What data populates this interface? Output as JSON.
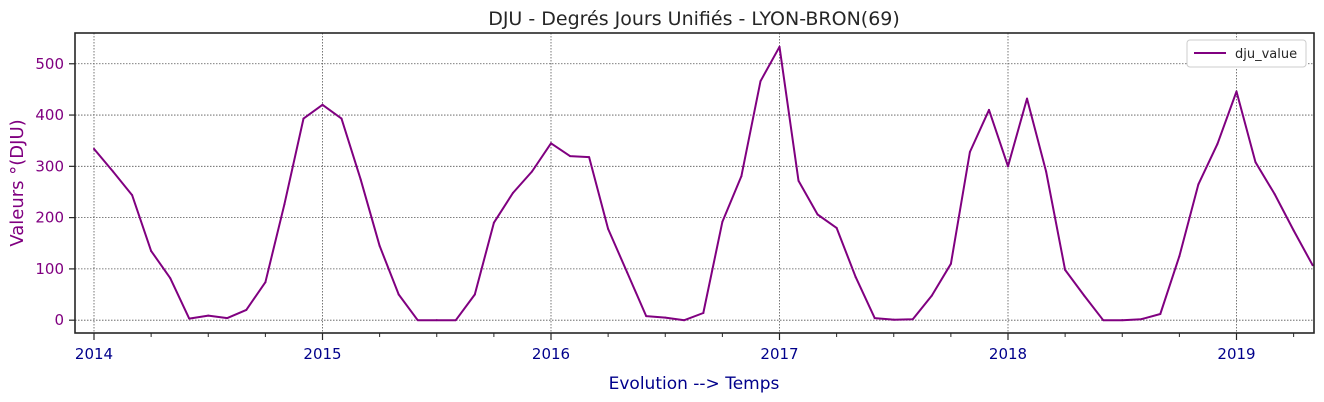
{
  "chart_data": {
    "type": "line",
    "title": "DJU - Degrés Jours Unifiés - LYON-BRON(69)",
    "xlabel": "Evolution --> Temps",
    "ylabel": "Valeurs °(DJU)",
    "x_ticks": [
      "2014",
      "2015",
      "2016",
      "2017",
      "2018",
      "2019"
    ],
    "y_ticks": [
      0,
      100,
      200,
      300,
      400,
      500
    ],
    "xlim": [
      "2014-01",
      "2019-05"
    ],
    "ylim": [
      -25,
      560
    ],
    "grid": true,
    "legend_position": "top-right",
    "colors": {
      "line": "#800080",
      "x_text": "#00008b",
      "y_text": "#800080",
      "grid": "#555555"
    },
    "series": [
      {
        "name": "dju_value",
        "x": [
          "2014-01",
          "2014-02",
          "2014-03",
          "2014-04",
          "2014-05",
          "2014-06",
          "2014-07",
          "2014-08",
          "2014-09",
          "2014-10",
          "2014-11",
          "2014-12",
          "2015-01",
          "2015-02",
          "2015-03",
          "2015-04",
          "2015-05",
          "2015-06",
          "2015-07",
          "2015-08",
          "2015-09",
          "2015-10",
          "2015-11",
          "2015-12",
          "2016-01",
          "2016-02",
          "2016-03",
          "2016-04",
          "2016-05",
          "2016-06",
          "2016-07",
          "2016-08",
          "2016-09",
          "2016-10",
          "2016-11",
          "2016-12",
          "2017-01",
          "2017-02",
          "2017-03",
          "2017-04",
          "2017-05",
          "2017-06",
          "2017-07",
          "2017-08",
          "2017-09",
          "2017-10",
          "2017-11",
          "2017-12",
          "2018-01",
          "2018-02",
          "2018-03",
          "2018-04",
          "2018-05",
          "2018-06",
          "2018-07",
          "2018-08",
          "2018-09",
          "2018-10",
          "2018-11",
          "2018-12",
          "2019-01",
          "2019-02",
          "2019-03",
          "2019-04",
          "2019-05"
        ],
        "values": [
          334,
          290,
          244,
          135,
          82,
          3,
          9,
          4,
          20,
          74,
          226,
          393,
          420,
          393,
          275,
          145,
          50,
          0,
          0,
          0,
          50,
          190,
          248,
          290,
          345,
          320,
          318,
          178,
          93,
          8,
          5,
          0,
          14,
          192,
          281,
          466,
          533,
          272,
          206,
          180,
          84,
          4,
          1,
          2,
          48,
          110,
          328,
          410,
          300,
          432,
          290,
          98,
          48,
          0,
          0,
          2,
          12,
          125,
          265,
          344,
          446,
          308,
          246,
          175,
          107
        ]
      }
    ]
  }
}
